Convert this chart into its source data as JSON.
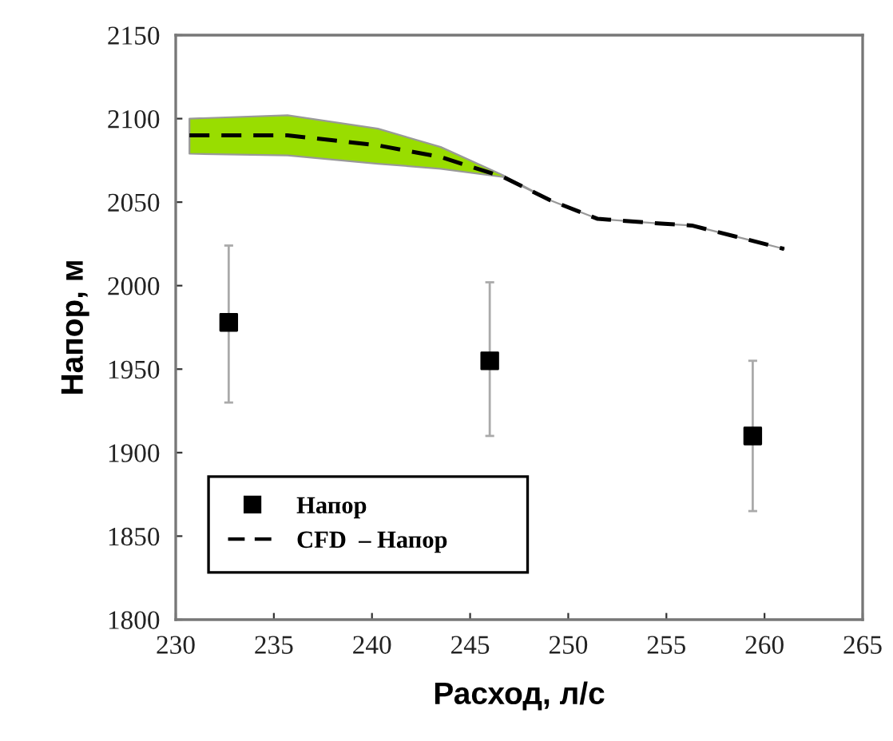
{
  "chart_data": {
    "type": "scatter",
    "xlabel": "Расход, л/с",
    "ylabel": "Напор, м",
    "xlim": [
      230,
      265
    ],
    "xticks": [
      230,
      235,
      240,
      245,
      250,
      255,
      260,
      265
    ],
    "ylim": [
      1800,
      2150
    ],
    "yticks": [
      1800,
      1850,
      1900,
      1950,
      2000,
      2050,
      2100,
      2150
    ],
    "grid": false,
    "legend": "bottom left",
    "series": [
      {
        "name": "Напор",
        "color": "#000000",
        "marker": "square",
        "x": [
          232.7,
          246.0,
          259.4
        ],
        "values": [
          1978,
          1955,
          1910
        ],
        "errors": [
          [
            1930,
            2024
          ],
          [
            1910,
            2002
          ],
          [
            1865,
            1955
          ]
        ]
      },
      {
        "name": "CFD  – Напор",
        "type": "line",
        "color": "#000000",
        "line_style": "dashed",
        "marker": "none",
        "x": [
          230.7,
          235.7,
          240.3,
          243.5,
          246.7,
          249.1,
          251.5,
          254.9,
          256.3,
          259,
          261
        ],
        "values": [
          2090,
          2090,
          2084,
          2077,
          2065,
          2051,
          2040,
          2037,
          2036,
          2028,
          2022
        ],
        "lower": [
          2079,
          2078,
          2073,
          2070,
          2065,
          2051,
          2040,
          2037,
          2036,
          2028,
          2022
        ],
        "upper": [
          2100,
          2102,
          2094,
          2083,
          2066,
          2051,
          2040,
          2037,
          2036,
          2028,
          2022
        ]
      }
    ]
  }
}
